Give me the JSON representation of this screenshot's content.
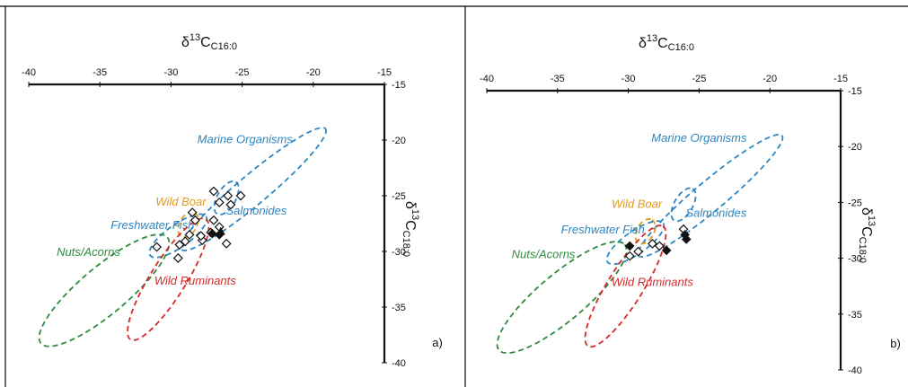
{
  "colors": {
    "frame": "#000000",
    "axis": "#111111",
    "marine": "#2e86c1",
    "salmonides": "#2e86c1",
    "freshwater": "#2e86c1",
    "boar": "#e39a1a",
    "nuts": "#2e8b3e",
    "ruminants": "#d42a2a"
  },
  "chart_data": [
    {
      "type": "scatter",
      "panel_label": "a)",
      "x_title": {
        "main": "δ",
        "sup": "13",
        "base": "C",
        "sub": "C16:0"
      },
      "y_title": {
        "main": "δ",
        "sup": "13",
        "base": "C",
        "sub": "C18:0"
      },
      "xlim": [
        -40,
        -15
      ],
      "ylim": [
        -40,
        -15
      ],
      "x_axis_position": "top",
      "y_axis_position": "right",
      "grid": false,
      "x_ticks": [
        -40,
        -35,
        -30,
        -25,
        -20,
        -15
      ],
      "y_ticks": [
        -15,
        -20,
        -25,
        -30,
        -35,
        -40
      ],
      "x_tick_labels": [
        "-40",
        "-35",
        "-30",
        "-25",
        "-20",
        "-15"
      ],
      "y_tick_labels": [
        "-15",
        "-20",
        "-25",
        "-30",
        "-35",
        "-40"
      ],
      "reference_ranges": [
        {
          "label": "Marine Organisms",
          "color_key": "marine",
          "center": [
            -24.2,
            -24.4
          ],
          "half_axes": [
            6.6,
            1.05
          ],
          "angle": 40,
          "label_at": [
            -24.8,
            -20.3
          ]
        },
        {
          "label": "Salmonides",
          "color_key": "salmonides",
          "center": [
            -26.1,
            -25.2
          ],
          "half_axes": [
            1.3,
            0.65
          ],
          "angle": 60,
          "label_at": [
            -24.0,
            -26.7
          ]
        },
        {
          "label": "Wild Boar",
          "color_key": "boar",
          "center": [
            -28.8,
            -27.6
          ],
          "half_axes": [
            0.95,
            0.6
          ],
          "angle": 60,
          "label_at": [
            -29.3,
            -25.9
          ]
        },
        {
          "label": "Freshwater Fish",
          "color_key": "freshwater",
          "center": [
            -29.5,
            -28.6
          ],
          "half_axes": [
            2.4,
            0.8
          ],
          "angle": 35,
          "label_at": [
            -31.3,
            -28.0
          ]
        },
        {
          "label": "Nuts/Acorns",
          "color_key": "nuts",
          "center": [
            -34.7,
            -33.5
          ],
          "half_axes": [
            5.8,
            1.65
          ],
          "angle": 40,
          "label_at": [
            -35.8,
            -30.4
          ]
        },
        {
          "label": "Wild Ruminants",
          "color_key": "ruminants",
          "center": [
            -30.2,
            -32.5
          ],
          "half_axes": [
            5.0,
            1.25
          ],
          "angle": 58,
          "label_at": [
            -28.3,
            -33.0
          ]
        }
      ],
      "series": [
        {
          "marker": "open-diamond",
          "points": [
            [
              -27.0,
              -24.6
            ],
            [
              -26.0,
              -25.0
            ],
            [
              -25.1,
              -25.0
            ],
            [
              -26.6,
              -25.6
            ],
            [
              -25.8,
              -25.8
            ],
            [
              -28.5,
              -26.5
            ],
            [
              -28.3,
              -27.2
            ],
            [
              -27.0,
              -27.2
            ],
            [
              -26.6,
              -27.8
            ],
            [
              -27.2,
              -28.3
            ],
            [
              -28.7,
              -28.5
            ],
            [
              -29.0,
              -29.1
            ],
            [
              -27.8,
              -29.0
            ],
            [
              -29.4,
              -29.4
            ],
            [
              -31.0,
              -29.6
            ],
            [
              -26.1,
              -29.3
            ],
            [
              -29.5,
              -30.6
            ],
            [
              -27.9,
              -28.6
            ]
          ]
        },
        {
          "marker": "filled-diamond",
          "points": [
            [
              -27.1,
              -28.4
            ],
            [
              -26.6,
              -28.5
            ]
          ]
        },
        {
          "marker": "filled-triangle",
          "points": [
            [
              -26.5,
              -28.2
            ]
          ]
        }
      ]
    },
    {
      "type": "scatter",
      "panel_label": "b)",
      "x_title": {
        "main": "δ",
        "sup": "13",
        "base": "C",
        "sub": "C16:0"
      },
      "y_title": {
        "main": "δ",
        "sup": "13",
        "base": "C",
        "sub": "C18:0"
      },
      "xlim": [
        -40,
        -15
      ],
      "ylim": [
        -40,
        -15
      ],
      "x_axis_position": "top",
      "y_axis_position": "right",
      "grid": false,
      "x_ticks": [
        -40,
        -35,
        -30,
        -25,
        -20,
        -15
      ],
      "y_ticks": [
        -15,
        -20,
        -25,
        -30,
        -35,
        -40
      ],
      "x_tick_labels": [
        "-40",
        "-35",
        "-30",
        "-25",
        "-20",
        "-15"
      ],
      "y_tick_labels": [
        "-15",
        "-20",
        "-25",
        "-30",
        "-35",
        "-40"
      ],
      "reference_ranges": [
        {
          "label": "Marine Organisms",
          "color_key": "marine",
          "center": [
            -24.2,
            -24.4
          ],
          "half_axes": [
            6.6,
            1.05
          ],
          "angle": 40,
          "label_at": [
            -25.0,
            -19.6
          ]
        },
        {
          "label": "Salmonides",
          "color_key": "salmonides",
          "center": [
            -26.1,
            -25.2
          ],
          "half_axes": [
            1.3,
            0.65
          ],
          "angle": 60,
          "label_at": [
            -23.8,
            -26.3
          ]
        },
        {
          "label": "Wild Boar",
          "color_key": "boar",
          "center": [
            -28.8,
            -27.6
          ],
          "half_axes": [
            0.95,
            0.6
          ],
          "angle": 60,
          "label_at": [
            -29.4,
            -25.5
          ]
        },
        {
          "label": "Freshwater Fish",
          "color_key": "freshwater",
          "center": [
            -29.5,
            -28.6
          ],
          "half_axes": [
            2.4,
            0.8
          ],
          "angle": 35,
          "label_at": [
            -31.8,
            -27.8
          ]
        },
        {
          "label": "Nuts/Acorns",
          "color_key": "nuts",
          "center": [
            -34.7,
            -33.5
          ],
          "half_axes": [
            5.8,
            1.65
          ],
          "angle": 40,
          "label_at": [
            -36.0,
            -30.0
          ]
        },
        {
          "label": "Wild Ruminants",
          "color_key": "ruminants",
          "center": [
            -30.2,
            -32.5
          ],
          "half_axes": [
            5.0,
            1.25
          ],
          "angle": 58,
          "label_at": [
            -28.3,
            -32.5
          ]
        }
      ],
      "series": [
        {
          "marker": "open-diamond",
          "points": [
            [
              -28.3,
              -28.7
            ],
            [
              -27.8,
              -28.9
            ],
            [
              -29.3,
              -29.4
            ],
            [
              -29.9,
              -29.8
            ],
            [
              -26.1,
              -27.4
            ]
          ]
        },
        {
          "marker": "filled-diamond",
          "points": [
            [
              -29.9,
              -28.9
            ],
            [
              -27.3,
              -29.3
            ],
            [
              -26.0,
              -27.9
            ],
            [
              -25.9,
              -28.3
            ]
          ]
        }
      ]
    }
  ]
}
